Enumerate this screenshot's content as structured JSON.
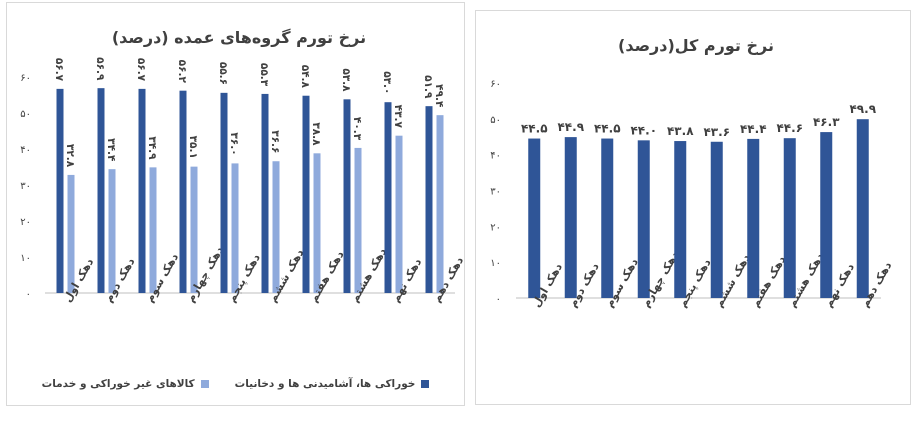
{
  "colors": {
    "series1": "#2F5597",
    "series2": "#8FAADC",
    "axis": "#bfbfbf"
  },
  "chart_data": [
    {
      "type": "bar",
      "title": "نرخ تورم گروه‌های عمده (درصد)",
      "categories": [
        "دهک اول",
        "دهک دوم",
        "دهک سوم",
        "دهک چهارم",
        "دهک پنجم",
        "دهک ششم",
        "دهک هفتم",
        "دهک هشتم",
        "دهک نهم",
        "دهک دهم"
      ],
      "series": [
        {
          "name": "خوراکی ها، آشامیدنی ها و دخانیات",
          "values": [
            56.7,
            56.9,
            56.7,
            56.2,
            55.6,
            55.3,
            54.8,
            53.8,
            53.0,
            51.9
          ],
          "labels": [
            "۵۶.۷",
            "۵۶.۹",
            "۵۶.۷",
            "۵۶.۲",
            "۵۵.۶",
            "۵۵.۳",
            "۵۴.۸",
            "۵۳.۸",
            "۵۳.۰",
            "۵۱.۹"
          ]
        },
        {
          "name": "کالاهای غیر خوراکی و خدمات",
          "values": [
            32.8,
            34.4,
            34.9,
            35.1,
            36.0,
            36.6,
            38.8,
            40.3,
            43.7,
            49.4
          ],
          "labels": [
            "۳۲.۸",
            "۳۴.۴",
            "۳۴.۹",
            "۳۵.۱",
            "۳۶.۰",
            "۳۶.۶",
            "۳۸.۸",
            "۴۰.۳",
            "۴۳.۷",
            "۴۹.۴"
          ]
        }
      ],
      "ylim": [
        0,
        60
      ],
      "yticks": [
        0,
        10,
        20,
        30,
        40,
        50,
        60
      ],
      "ytick_labels": [
        "۰",
        "۱۰",
        "۲۰",
        "۳۰",
        "۴۰",
        "۵۰",
        "۶۰"
      ],
      "legend": "bottom"
    },
    {
      "type": "bar",
      "title": "نرخ تورم کل(درصد)",
      "categories": [
        "دهک اول",
        "دهک دوم",
        "دهک سوم",
        "دهک چهارم",
        "دهک پنجم",
        "دهک ششم",
        "دهک هفتم",
        "دهک هشتم",
        "دهک نهم",
        "دهک دهم"
      ],
      "series": [
        {
          "values": [
            44.5,
            44.9,
            44.5,
            44.0,
            43.8,
            43.6,
            44.4,
            44.6,
            46.3,
            49.9
          ],
          "labels": [
            "۴۴.۵",
            "۴۴.۹",
            "۴۴.۵",
            "۴۴.۰",
            "۴۳.۸",
            "۴۳.۶",
            "۴۴.۴",
            "۴۴.۶",
            "۴۶.۳",
            "۴۹.۹"
          ]
        }
      ],
      "ylim": [
        0,
        60
      ],
      "yticks": [
        0,
        10,
        20,
        30,
        40,
        50,
        60
      ],
      "ytick_labels": [
        "۰",
        "۱۰",
        "۲۰",
        "۳۰",
        "۴۰",
        "۵۰",
        "۶۰"
      ],
      "legend": "none"
    }
  ]
}
